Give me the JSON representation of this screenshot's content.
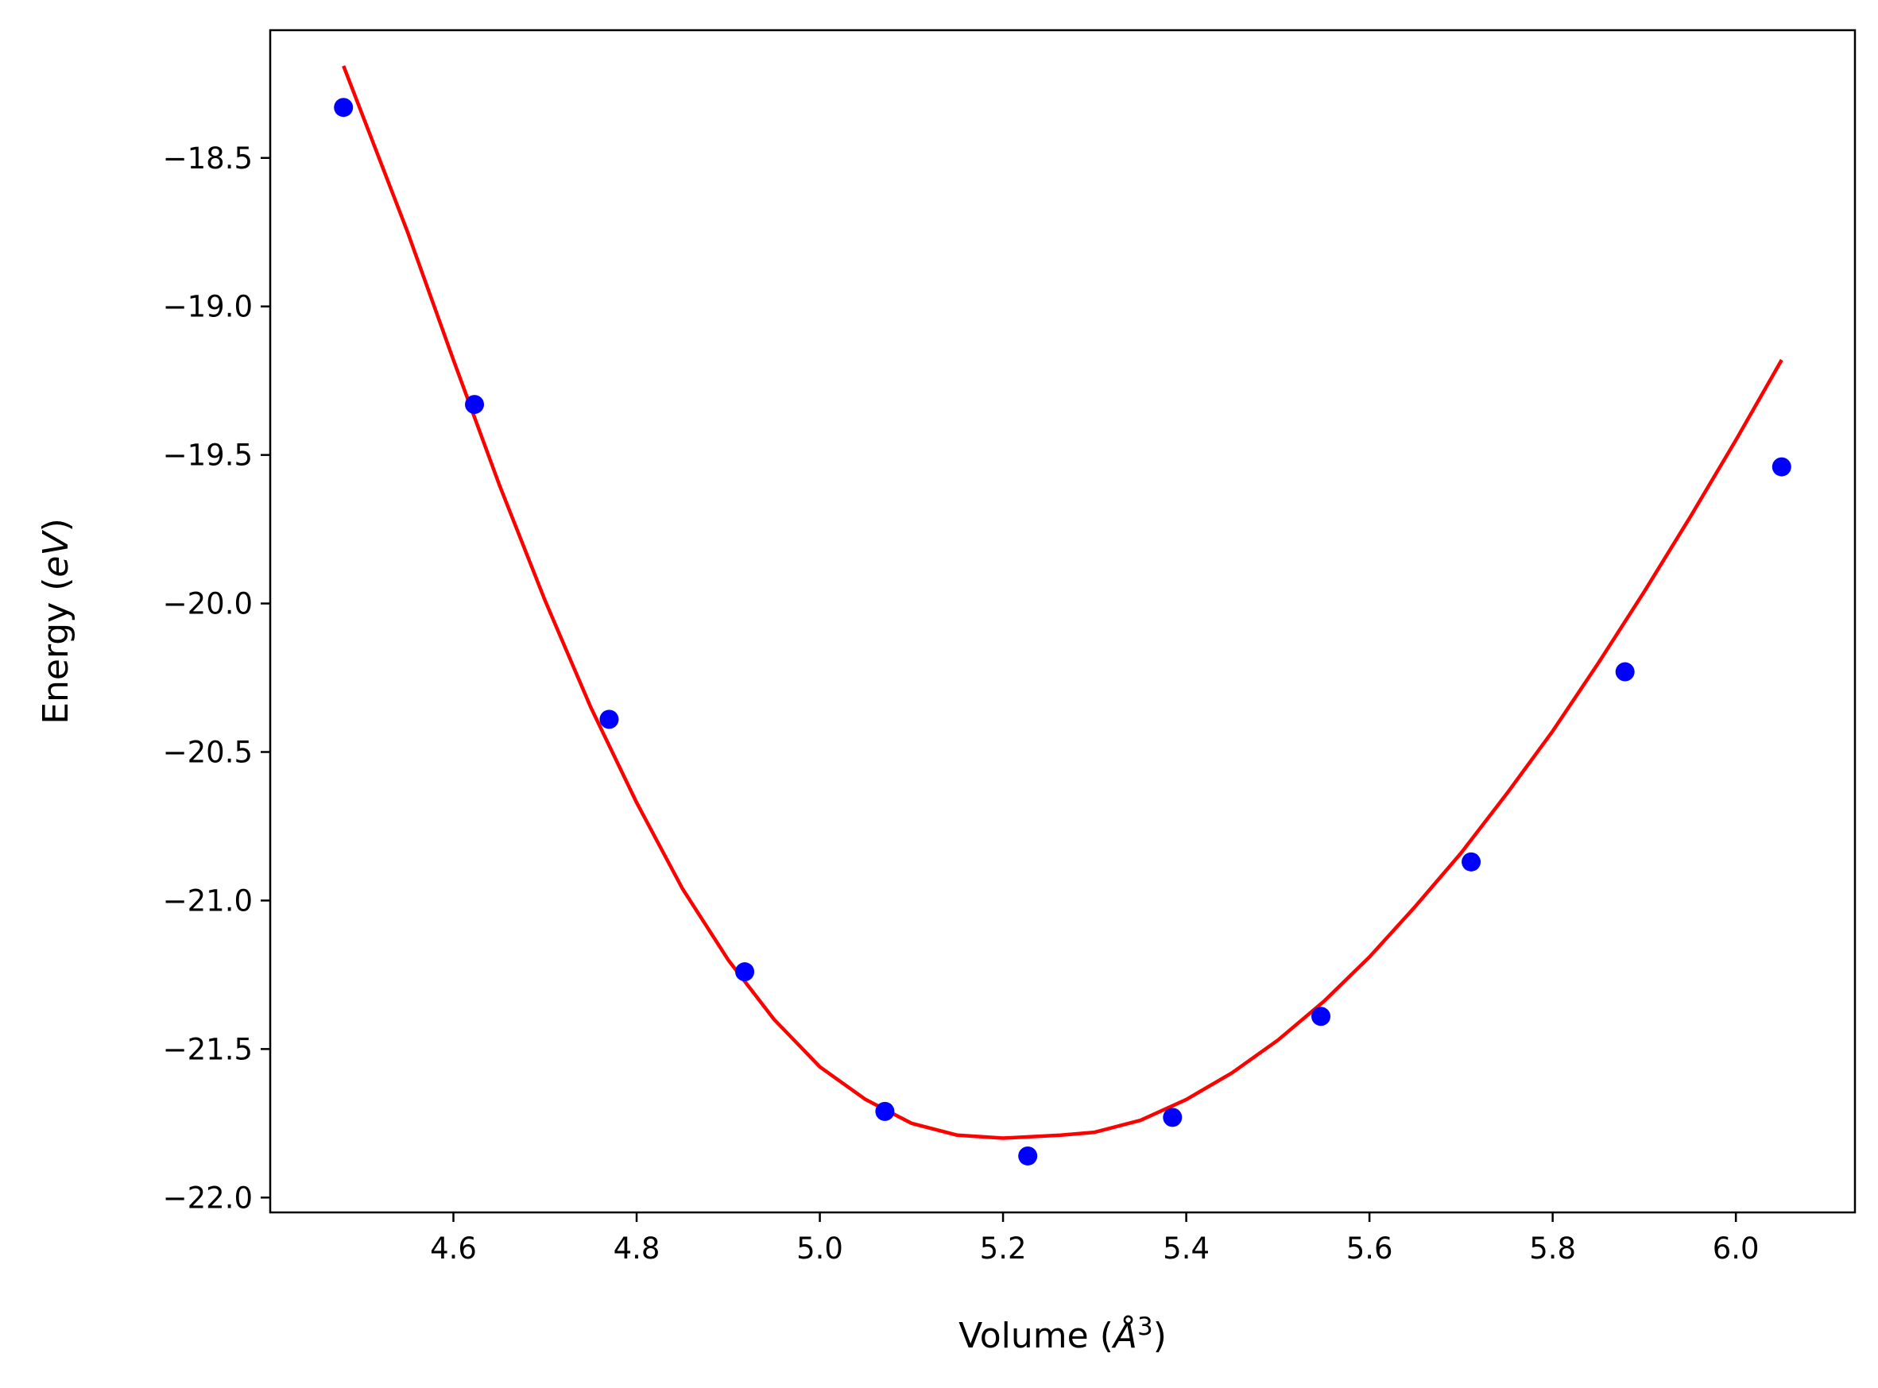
{
  "chart_data": {
    "type": "scatter",
    "title": "",
    "xlabel": {
      "prefix": "Volume (",
      "symbol": "Å",
      "superscript": "3",
      "suffix": ")"
    },
    "ylabel": {
      "prefix": "Energy (",
      "unit": "eV",
      "suffix": ")"
    },
    "xlim": [
      4.4,
      6.13
    ],
    "ylim": [
      -22.05,
      -18.07
    ],
    "xticks": [
      4.6,
      4.8,
      5.0,
      5.2,
      5.4,
      5.6,
      5.8,
      6.0
    ],
    "xtick_labels": [
      "4.6",
      "4.8",
      "5.0",
      "5.2",
      "5.4",
      "5.6",
      "5.8",
      "6.0"
    ],
    "yticks": [
      -18.5,
      -19.0,
      -19.5,
      -20.0,
      -20.5,
      -21.0,
      -21.5,
      -22.0
    ],
    "ytick_labels": [
      "−18.5",
      "−19.0",
      "−19.5",
      "−20.0",
      "−20.5",
      "−21.0",
      "−21.5",
      "−22.0"
    ],
    "grid": false,
    "series": [
      {
        "kind": "points",
        "color": "#0000ff",
        "x": [
          4.48,
          4.623,
          4.77,
          4.918,
          5.071,
          5.227,
          5.385,
          5.547,
          5.711,
          5.879,
          6.05
        ],
        "y": [
          -18.33,
          -19.33,
          -20.39,
          -21.24,
          -21.71,
          -21.86,
          -21.73,
          -21.39,
          -20.87,
          -20.23,
          -19.54
        ]
      },
      {
        "kind": "line",
        "color": "#ff0000",
        "x": [
          4.48,
          4.55,
          4.6,
          4.65,
          4.7,
          4.75,
          4.8,
          4.85,
          4.9,
          4.95,
          5.0,
          5.05,
          5.1,
          5.15,
          5.2,
          5.263,
          5.3,
          5.35,
          5.4,
          5.45,
          5.5,
          5.55,
          5.6,
          5.65,
          5.7,
          5.75,
          5.8,
          5.85,
          5.9,
          5.95,
          6.0,
          6.05
        ],
        "y": [
          -18.19,
          -18.75,
          -19.18,
          -19.6,
          -19.99,
          -20.35,
          -20.67,
          -20.96,
          -21.2,
          -21.4,
          -21.56,
          -21.67,
          -21.75,
          -21.79,
          -21.8,
          -21.79,
          -21.78,
          -21.74,
          -21.67,
          -21.58,
          -21.47,
          -21.34,
          -21.19,
          -21.02,
          -20.84,
          -20.64,
          -20.43,
          -20.2,
          -19.96,
          -19.71,
          -19.45,
          -19.18
        ]
      }
    ]
  }
}
